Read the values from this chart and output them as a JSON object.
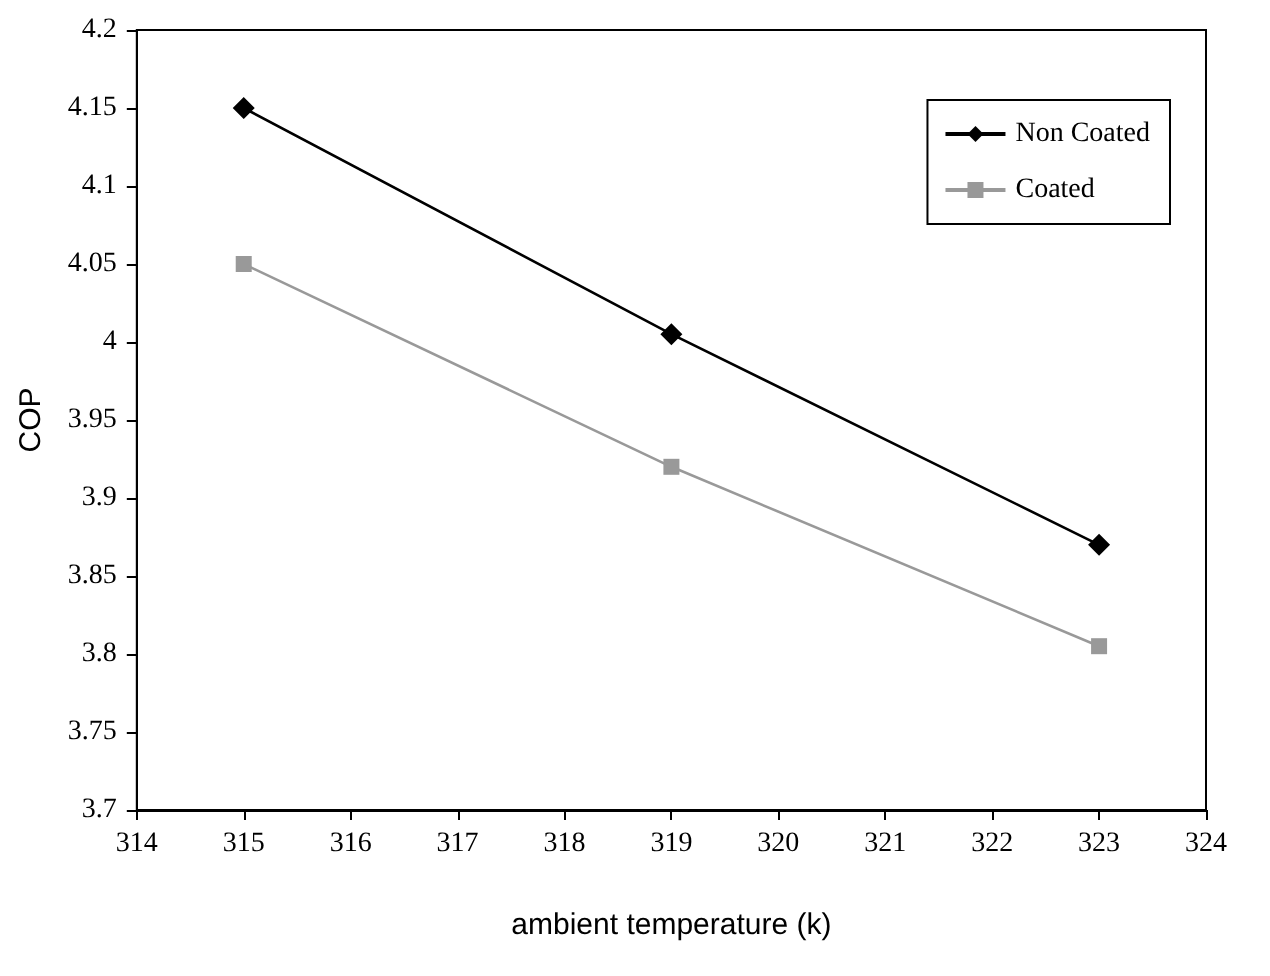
{
  "chart_data": {
    "type": "line",
    "xlabel": "ambient temperature (k)",
    "ylabel": "COP",
    "x": [
      315,
      319,
      323
    ],
    "series": [
      {
        "name": "Non Coated",
        "color": "#000000",
        "marker": "diamond",
        "values": [
          4.15,
          4.005,
          3.87
        ]
      },
      {
        "name": "Coated",
        "color": "#999999",
        "marker": "square",
        "values": [
          4.05,
          3.92,
          3.805
        ]
      }
    ],
    "xlim": [
      314,
      324
    ],
    "xticks": [
      314,
      315,
      316,
      317,
      318,
      319,
      320,
      321,
      322,
      323,
      324
    ],
    "ylim": [
      3.7,
      4.2
    ],
    "yticks": [
      3.7,
      3.75,
      3.8,
      3.85,
      3.9,
      3.95,
      4,
      4.05,
      4.1,
      4.15,
      4.2
    ],
    "grid": false,
    "legend": "top right",
    "line_style": "solid"
  }
}
